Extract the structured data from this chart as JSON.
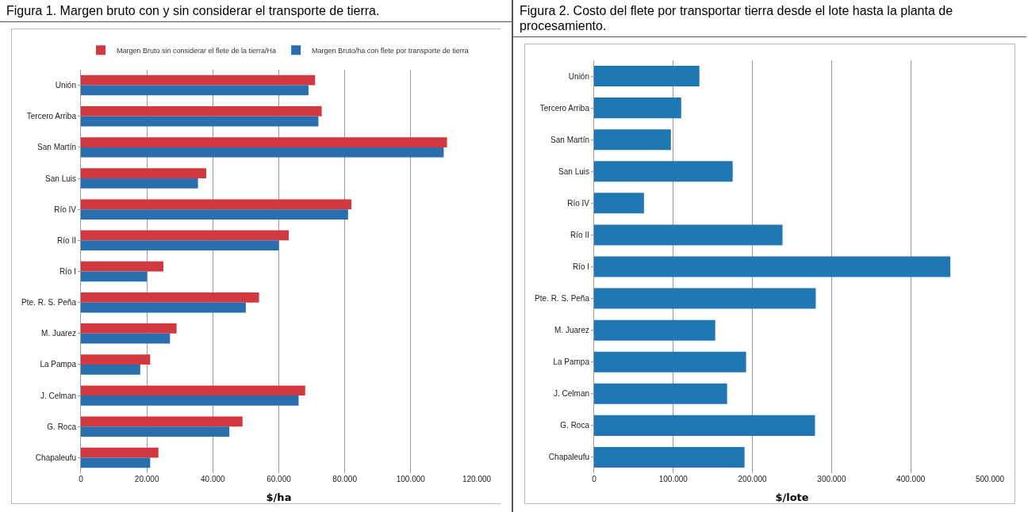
{
  "chart_data": [
    {
      "type": "bar",
      "orientation": "horizontal",
      "title": "Figura 1. Margen bruto con y sin considerar el transporte de tierra.",
      "xlabel": "$/ha",
      "categories": [
        "Unión",
        "Tercero Arriba",
        "San Martín",
        "San Luis",
        "Río IV",
        "Río II",
        "Río I",
        "Pte. R. S. Peña",
        "M. Juarez",
        "La Pampa",
        "J. Celman",
        "G. Roca",
        "Chapaleufu"
      ],
      "series": [
        {
          "name": "Margen Bruto sin considerar el flete de la tierra/Ha",
          "color": "#d2383f",
          "values": [
            71000,
            73000,
            111000,
            38000,
            82000,
            63000,
            25000,
            54000,
            29000,
            21000,
            68000,
            49000,
            23500
          ]
        },
        {
          "name": "Margen Bruto/ha con flete por transporte de tierra",
          "color": "#2a6fad",
          "values": [
            69000,
            72000,
            110000,
            35500,
            81000,
            60000,
            20000,
            50000,
            27000,
            18000,
            66000,
            45000,
            21000
          ]
        }
      ],
      "xlim": [
        0,
        120000
      ],
      "xticks": [
        0,
        {
          "value": 20000,
          "label": "20.000"
        },
        {
          "value": 40000,
          "label": "40.000"
        },
        {
          "value": 60000,
          "label": "60.000"
        },
        {
          "value": 80000,
          "label": "80.000"
        },
        {
          "value": 100000,
          "label": "100.000"
        },
        {
          "value": 120000,
          "label": "120.000"
        }
      ],
      "grid": "x",
      "legend": "top"
    },
    {
      "type": "bar",
      "orientation": "horizontal",
      "title": "Figura 2. Costo del flete por transportar tierra desde el lote hasta la planta de procesamiento.",
      "xlabel": "$/lote",
      "categories": [
        "Unión",
        "Tercero Arriba",
        "San Martín",
        "San Luis",
        "Río IV",
        "Río II",
        "Río I",
        "Pte. R. S. Peña",
        "M. Juarez",
        "La Pampa",
        "J. Celman",
        "G. Roca",
        "Chapaleufu"
      ],
      "series": [
        {
          "color": "#1f77b4",
          "values": [
            133000,
            110000,
            97000,
            175000,
            63000,
            238000,
            450000,
            280000,
            153000,
            192000,
            168000,
            279000,
            190000
          ]
        }
      ],
      "xlim": [
        0,
        500000
      ],
      "xticks": [
        0,
        {
          "value": 100000,
          "label": "100.000"
        },
        {
          "value": 200000,
          "label": "200.000"
        },
        {
          "value": 300000,
          "label": "300.000"
        },
        {
          "value": 400000,
          "label": "400.000"
        },
        {
          "value": 500000,
          "label": "500.000"
        }
      ],
      "grid": "x",
      "legend": false
    }
  ]
}
